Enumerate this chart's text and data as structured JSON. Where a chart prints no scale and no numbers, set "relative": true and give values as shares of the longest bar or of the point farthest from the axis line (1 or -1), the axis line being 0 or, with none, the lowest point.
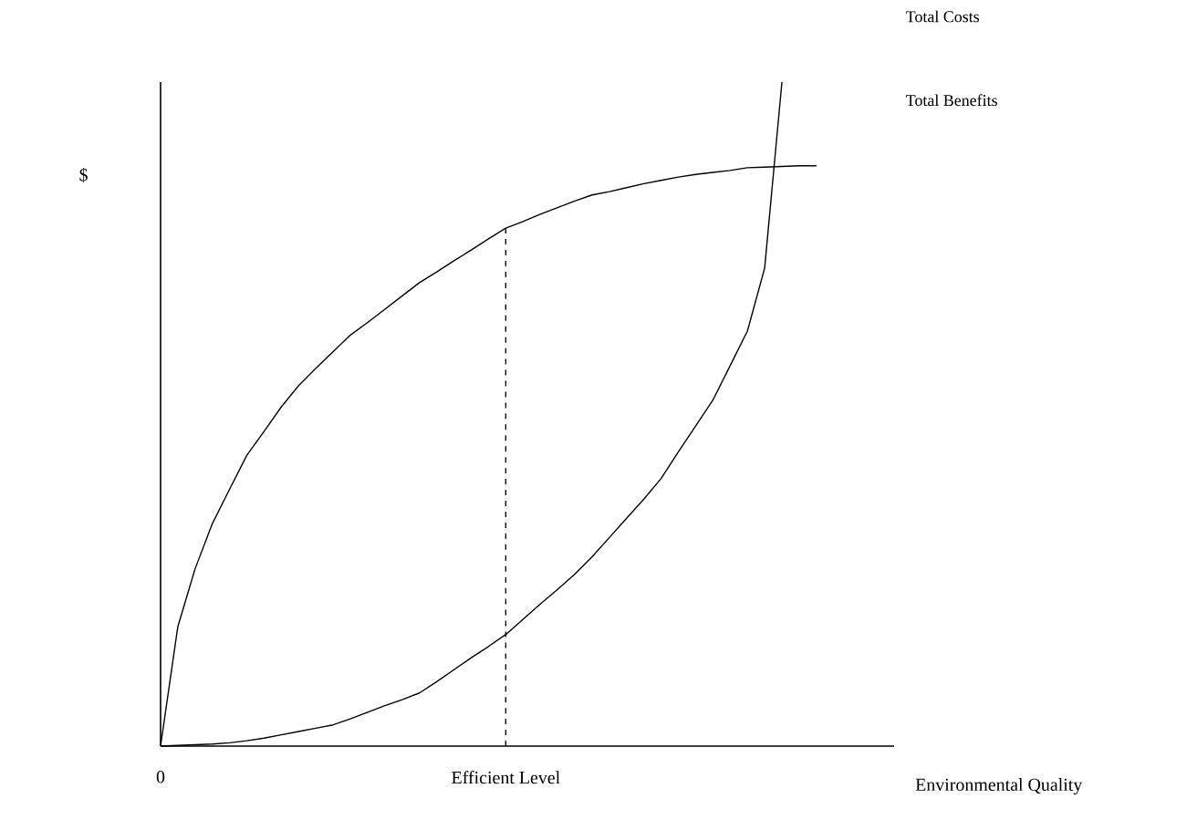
{
  "chart_data": {
    "type": "line",
    "relative": true,
    "ylabel": "$",
    "xlabel": "Environmental Quality",
    "categories": [
      "0",
      null,
      null,
      null,
      null,
      null,
      null,
      null,
      null,
      null,
      null,
      null,
      null,
      null,
      null,
      null,
      null,
      null,
      null,
      null,
      "Efficient Level",
      null,
      null,
      null,
      null,
      null,
      null,
      null,
      null,
      null,
      null,
      null,
      null,
      null,
      null,
      null,
      null,
      null,
      null
    ],
    "ref_lines": [
      {
        "axis": "x",
        "value": "Efficient Level",
        "line_style": "dashed",
        "color": "#000000"
      }
    ],
    "series": [
      {
        "name": "Total Costs",
        "color": "#000000",
        "values": [
          0,
          0.001,
          0.002,
          0.003,
          0.005,
          0.008,
          0.012,
          0.017,
          0.022,
          0.027,
          0.032,
          0.041,
          0.051,
          0.061,
          0.07,
          0.08,
          0.097,
          0.115,
          0.133,
          0.15,
          0.168,
          0.191,
          0.214,
          0.236,
          0.259,
          0.285,
          0.314,
          0.343,
          0.372,
          0.403,
          0.443,
          0.482,
          0.521,
          0.573,
          0.625,
          0.72,
          1.0,
          null,
          null
        ]
      },
      {
        "name": "Total Benefits",
        "color": "#000000",
        "values": [
          0,
          0.18,
          0.267,
          0.335,
          0.387,
          0.438,
          0.474,
          0.511,
          0.543,
          0.569,
          0.594,
          0.619,
          0.638,
          0.658,
          0.678,
          0.698,
          0.714,
          0.731,
          0.747,
          0.764,
          0.78,
          0.79,
          0.801,
          0.811,
          0.821,
          0.83,
          0.835,
          0.841,
          0.847,
          0.852,
          0.857,
          0.861,
          0.864,
          0.867,
          0.871,
          0.872,
          0.873,
          0.874,
          0.874
        ]
      }
    ]
  }
}
